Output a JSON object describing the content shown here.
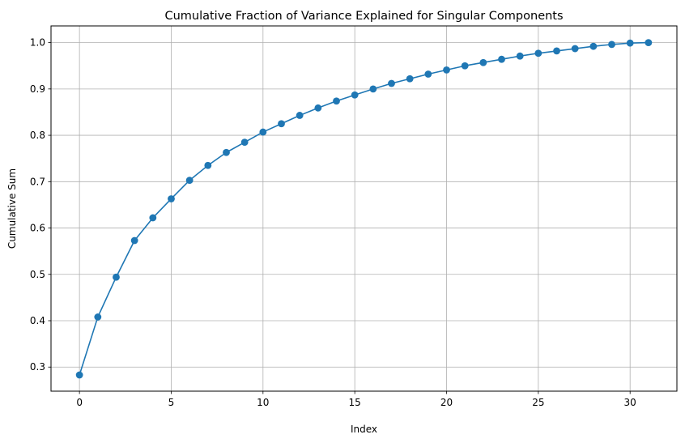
{
  "chart_data": {
    "type": "line",
    "title": "Cumulative Fraction of Variance Explained for Singular Components",
    "xlabel": "Index",
    "ylabel": "Cumulative Sum",
    "xlim": [
      -1.55,
      32.55
    ],
    "ylim": [
      0.248,
      1.036
    ],
    "xticks": [
      0,
      5,
      10,
      15,
      20,
      25,
      30
    ],
    "yticks": [
      0.3,
      0.4,
      0.5,
      0.6,
      0.7,
      0.8,
      0.9,
      1.0
    ],
    "xtick_labels": [
      "0",
      "5",
      "10",
      "15",
      "20",
      "25",
      "30"
    ],
    "ytick_labels": [
      "0.3",
      "0.4",
      "0.5",
      "0.6",
      "0.7",
      "0.8",
      "0.9",
      "1.0"
    ],
    "grid": true,
    "marker": "circle",
    "series": [
      {
        "color": "#1f77b4",
        "x": [
          0,
          1,
          2,
          3,
          4,
          5,
          6,
          7,
          8,
          9,
          10,
          11,
          12,
          13,
          14,
          15,
          16,
          17,
          18,
          19,
          20,
          21,
          22,
          23,
          24,
          25,
          26,
          27,
          28,
          29,
          30,
          31
        ],
        "values": [
          0.283,
          0.408,
          0.494,
          0.573,
          0.622,
          0.663,
          0.703,
          0.735,
          0.763,
          0.785,
          0.807,
          0.825,
          0.843,
          0.859,
          0.874,
          0.887,
          0.9,
          0.912,
          0.922,
          0.932,
          0.941,
          0.95,
          0.957,
          0.964,
          0.971,
          0.977,
          0.982,
          0.987,
          0.992,
          0.996,
          0.999,
          1.0
        ]
      }
    ]
  }
}
